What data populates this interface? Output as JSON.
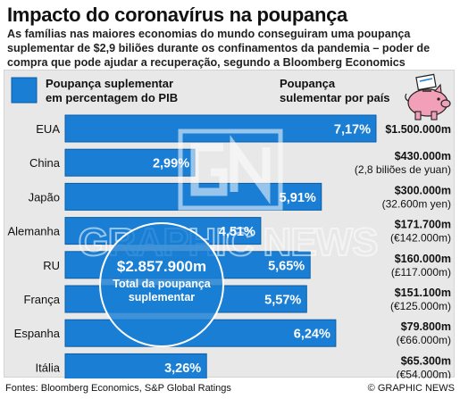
{
  "title": "Impacto do coronavírus na poupança",
  "subtitle": "As famílias nas maiores economias do mundo conseguiram uma poupança suplementar de $2,9 biliões durante os confinamentos da pandemia – poder de compra que pode ajudar a recuperação, segundo a Bloomberg Economics",
  "legend": {
    "bar_line1": "Poupança suplementar",
    "bar_line2": "em percentagem do PIB",
    "country_line1": "Poupança",
    "country_line2": "sulementar por país"
  },
  "total": {
    "value": "$2.857.900m",
    "label_line1": "Total da poupança",
    "label_line2": "suplementar"
  },
  "watermark": "GRAPHIC NEWS",
  "footer": {
    "sources": "Fontes: Bloomberg Economics, S&P Global Ratings",
    "credit": "© GRAPHIC NEWS"
  },
  "colors": {
    "bar": "#1a7fd4",
    "bar_edge": "#0a5ea6",
    "panel": "#e8e8e8",
    "piggy": "#f2a0b8"
  },
  "icons": [
    "piggy-bank-icon"
  ],
  "chart_data": {
    "type": "bar",
    "orientation": "horizontal",
    "categories": [
      "EUA",
      "China",
      "Japão",
      "Alemanha",
      "RU",
      "França",
      "Espanha",
      "Itália"
    ],
    "values": [
      7.17,
      2.99,
      5.91,
      4.51,
      5.65,
      5.57,
      6.24,
      3.26
    ],
    "value_labels": [
      "7,17%",
      "2,99%",
      "5,91%",
      "4,51%",
      "5,65%",
      "5,57%",
      "6,24%",
      "3,26%"
    ],
    "xlim": [
      0,
      7.17
    ],
    "amounts": [
      "$1.500.000m",
      "$430.000m",
      "$300.000m",
      "$171.700m",
      "$160.000m",
      "$151.100m",
      "$79.800m",
      "$65.300m"
    ],
    "local_amounts": [
      "",
      "(2,8 biliões de yuan)",
      "(32.600m yen)",
      "(€142.000m)",
      "(£117.000m)",
      "(€125.000m)",
      "(€66.000m)",
      "(€54.000m)"
    ]
  }
}
